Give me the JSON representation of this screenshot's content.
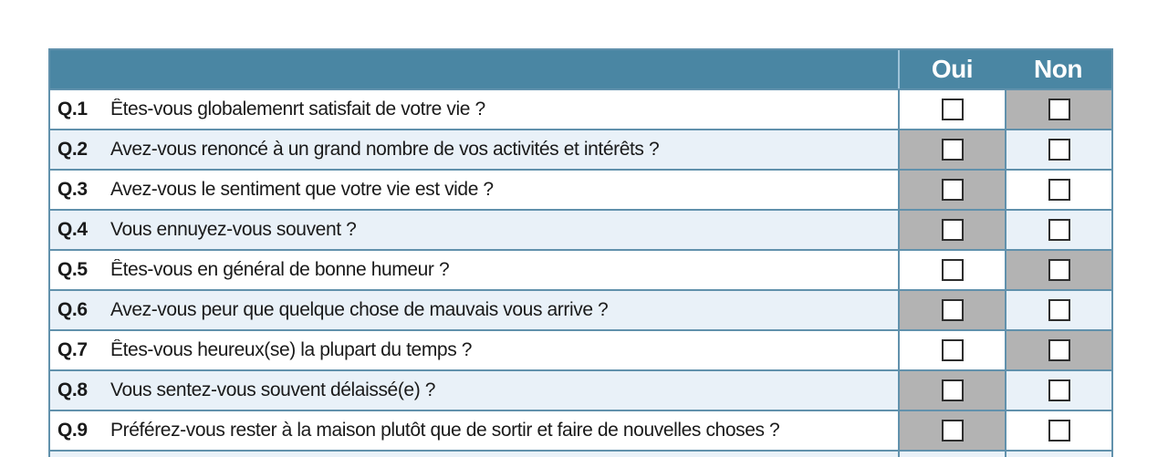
{
  "header": {
    "oui_label": "Oui",
    "non_label": "Non"
  },
  "rows": [
    {
      "num": "Q.1",
      "question": "Êtes-vous globalemenrt satisfait de votre vie ?",
      "shaded": "non"
    },
    {
      "num": "Q.2",
      "question": "Avez-vous renoncé à un grand nombre de vos activités et intérêts ?",
      "shaded": "oui"
    },
    {
      "num": "Q.3",
      "question": "Avez-vous le sentiment que votre vie est vide ?",
      "shaded": "oui"
    },
    {
      "num": "Q.4",
      "question": "Vous ennuyez-vous souvent ?",
      "shaded": "oui"
    },
    {
      "num": "Q.5",
      "question": "Êtes-vous en général de bonne humeur ?",
      "shaded": "non"
    },
    {
      "num": "Q.6",
      "question": "Avez-vous peur que quelque chose de mauvais vous arrive ?",
      "shaded": "oui"
    },
    {
      "num": "Q.7",
      "question": "Êtes-vous heureux(se) la plupart du temps ?",
      "shaded": "non"
    },
    {
      "num": "Q.8",
      "question": "Vous sentez-vous souvent délaissé(e) ?",
      "shaded": "oui"
    },
    {
      "num": "Q.9",
      "question": "Préférez-vous rester à la maison plutôt que de sortir et faire de nouvelles choses ?",
      "shaded": "oui"
    }
  ],
  "colors": {
    "header_bg": "#4a86a3",
    "grid_line": "#6191ac",
    "row_alt_bg": "#e9f1f8",
    "shaded_cell_bg": "#b3b3b3",
    "header_text": "#ffffff",
    "body_text": "#1a1a1a"
  }
}
